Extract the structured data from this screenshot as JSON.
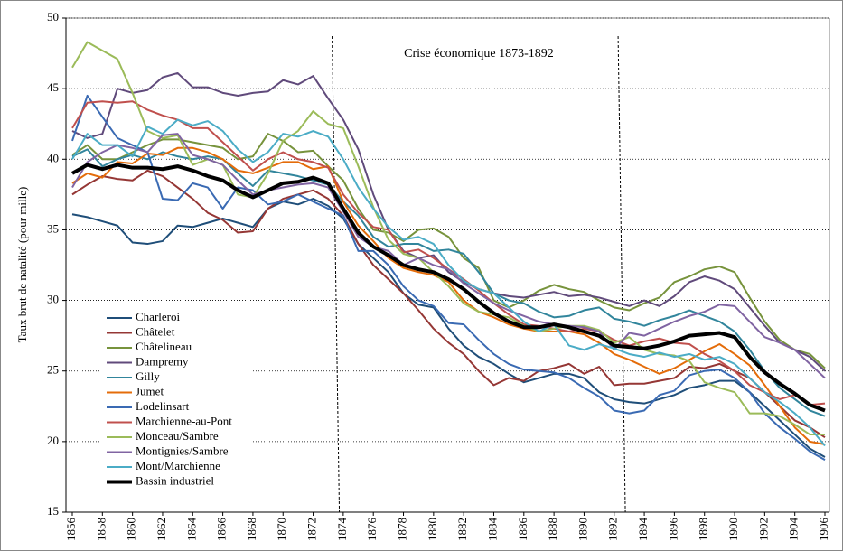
{
  "chart_data": {
    "type": "line",
    "y_label": "Taux brut de natalité (pour mille)",
    "annotation": "Crise économique 1873-1892",
    "vlines": [
      1873.5,
      1892.5
    ],
    "x": [
      1856,
      1857,
      1858,
      1859,
      1860,
      1861,
      1862,
      1863,
      1864,
      1865,
      1866,
      1867,
      1868,
      1869,
      1870,
      1871,
      1872,
      1873,
      1874,
      1875,
      1876,
      1877,
      1878,
      1879,
      1880,
      1881,
      1882,
      1883,
      1884,
      1885,
      1886,
      1887,
      1888,
      1889,
      1890,
      1891,
      1892,
      1893,
      1894,
      1895,
      1896,
      1897,
      1898,
      1899,
      1900,
      1901,
      1902,
      1903,
      1904,
      1905,
      1906
    ],
    "xlim": [
      1856,
      1906
    ],
    "xticks": [
      1856,
      1858,
      1860,
      1862,
      1864,
      1866,
      1868,
      1870,
      1872,
      1874,
      1876,
      1878,
      1880,
      1882,
      1884,
      1886,
      1888,
      1890,
      1892,
      1894,
      1896,
      1898,
      1900,
      1902,
      1904,
      1906
    ],
    "ylim": [
      15,
      50
    ],
    "yticks": [
      15,
      20,
      25,
      30,
      35,
      40,
      45,
      50
    ],
    "grid": true,
    "legend": "lower-left",
    "series": [
      {
        "name": "Charleroi",
        "color": "#1f4e79",
        "width": 2,
        "values": [
          36.1,
          35.9,
          35.6,
          35.3,
          34.1,
          34.0,
          34.2,
          35.3,
          35.2,
          35.5,
          35.8,
          35.5,
          35.2,
          36.5,
          37.0,
          36.8,
          37.2,
          36.7,
          35.8,
          34.0,
          33.0,
          32.0,
          30.5,
          29.7,
          29.5,
          28.0,
          26.8,
          26.0,
          25.5,
          24.8,
          24.2,
          24.5,
          24.8,
          24.8,
          24.5,
          23.5,
          23.0,
          22.8,
          22.7,
          23.0,
          23.3,
          23.8,
          24.0,
          24.3,
          24.3,
          23.5,
          22.5,
          21.5,
          20.5,
          19.5,
          18.9
        ]
      },
      {
        "name": "Châtelet",
        "color": "#953735",
        "width": 2,
        "values": [
          37.5,
          38.2,
          38.8,
          38.6,
          38.5,
          39.2,
          38.8,
          38.0,
          37.2,
          36.2,
          35.7,
          34.8,
          34.9,
          36.5,
          37.2,
          37.5,
          37.8,
          37.2,
          36.0,
          34.0,
          32.5,
          31.5,
          30.5,
          29.3,
          28.0,
          27.0,
          26.2,
          25.0,
          24.0,
          24.5,
          24.3,
          25.0,
          25.2,
          25.5,
          24.8,
          25.3,
          24.0,
          24.1,
          24.1,
          24.3,
          24.5,
          25.3,
          25.2,
          25.5,
          25.0,
          24.5,
          23.5,
          22.5,
          21.5,
          21.0,
          20.3
        ]
      },
      {
        "name": "Châtelineau",
        "color": "#77933c",
        "width": 2,
        "values": [
          40.3,
          41.0,
          40.0,
          40.0,
          40.5,
          41.0,
          41.4,
          41.4,
          41.2,
          41.0,
          40.8,
          40.0,
          40.2,
          41.8,
          41.3,
          40.5,
          40.6,
          39.5,
          38.5,
          36.5,
          35.0,
          34.8,
          34.2,
          35.0,
          35.1,
          34.5,
          33.0,
          32.3,
          30.0,
          29.5,
          30.0,
          30.7,
          31.1,
          30.8,
          30.6,
          30.0,
          29.5,
          29.3,
          29.8,
          30.2,
          31.3,
          31.7,
          32.2,
          32.4,
          32.0,
          30.2,
          28.5,
          27.2,
          26.5,
          26.2,
          25.2
        ]
      },
      {
        "name": "Dampremy",
        "color": "#604a7b",
        "width": 2,
        "values": [
          42.0,
          41.5,
          41.8,
          45.0,
          44.7,
          44.9,
          45.8,
          46.1,
          45.1,
          45.1,
          44.7,
          44.5,
          44.7,
          44.8,
          45.6,
          45.3,
          45.9,
          44.3,
          42.8,
          40.7,
          37.5,
          35.0,
          33.5,
          33.0,
          33.2,
          32.0,
          31.3,
          30.8,
          30.5,
          30.3,
          30.2,
          30.4,
          30.6,
          30.3,
          30.4,
          30.2,
          29.9,
          29.6,
          30.0,
          29.6,
          30.3,
          31.3,
          31.7,
          31.4,
          30.8,
          29.5,
          28.2,
          27.0,
          26.5,
          26.0,
          25.0
        ]
      },
      {
        "name": "Gilly",
        "color": "#31859c",
        "width": 2,
        "values": [
          40.2,
          40.7,
          39.5,
          40.0,
          40.3,
          40.0,
          40.5,
          40.2,
          40.0,
          40.2,
          40.0,
          39.0,
          38.1,
          39.2,
          39.0,
          38.8,
          38.5,
          38.2,
          37.0,
          36.0,
          34.5,
          33.8,
          34.0,
          34.0,
          33.5,
          33.6,
          33.3,
          32.0,
          30.5,
          30.0,
          29.8,
          29.2,
          28.8,
          28.9,
          29.3,
          29.5,
          28.7,
          28.5,
          28.2,
          28.6,
          28.9,
          29.3,
          28.9,
          28.5,
          27.8,
          26.5,
          25.0,
          23.8,
          23.0,
          22.2,
          21.8
        ]
      },
      {
        "name": "Jumet",
        "color": "#e46c0a",
        "width": 2,
        "values": [
          38.3,
          39.0,
          38.7,
          39.8,
          39.7,
          40.4,
          40.3,
          40.8,
          40.8,
          40.5,
          40.0,
          39.2,
          39.0,
          39.4,
          39.8,
          39.8,
          39.3,
          39.5,
          37.0,
          35.3,
          34.2,
          33.0,
          32.3,
          32.0,
          31.8,
          31.3,
          30.0,
          29.2,
          28.8,
          28.3,
          28.0,
          27.8,
          27.8,
          27.8,
          27.6,
          27.0,
          26.2,
          25.8,
          25.3,
          24.8,
          25.2,
          25.8,
          26.4,
          26.9,
          26.2,
          25.4,
          24.0,
          22.5,
          21.0,
          20.0,
          19.8
        ]
      },
      {
        "name": "Lodelinsart",
        "color": "#3a6ab3",
        "width": 2,
        "values": [
          41.3,
          44.5,
          43.0,
          41.5,
          41.0,
          40.5,
          37.2,
          37.1,
          38.3,
          38.0,
          36.5,
          38.0,
          37.8,
          36.8,
          37.0,
          37.5,
          37.0,
          36.5,
          36.0,
          33.5,
          33.5,
          32.5,
          31.0,
          30.0,
          29.6,
          28.4,
          28.3,
          27.2,
          26.2,
          25.5,
          25.1,
          25.0,
          24.9,
          24.5,
          23.8,
          23.2,
          22.2,
          22.0,
          22.2,
          23.3,
          23.6,
          24.7,
          25.0,
          25.1,
          24.5,
          23.5,
          22.0,
          21.0,
          20.2,
          19.3,
          18.7
        ]
      },
      {
        "name": "Marchienne-au-Pont",
        "color": "#c0504d",
        "width": 2,
        "values": [
          42.2,
          44.0,
          44.1,
          44.0,
          44.1,
          43.5,
          43.1,
          42.8,
          42.2,
          42.2,
          41.2,
          40.2,
          39.2,
          40.0,
          40.5,
          40.0,
          39.8,
          39.4,
          37.5,
          36.2,
          35.2,
          35.0,
          33.4,
          33.6,
          33.0,
          32.2,
          31.5,
          30.7,
          29.8,
          29.0,
          28.3,
          28.2,
          28.0,
          27.8,
          28.0,
          27.8,
          27.2,
          26.8,
          27.1,
          27.3,
          27.0,
          26.9,
          26.2,
          25.7,
          25.0,
          24.0,
          23.5,
          23.0,
          23.3,
          22.6,
          22.7
        ]
      },
      {
        "name": "Monceau/Sambre",
        "color": "#9bbb59",
        "width": 2,
        "values": [
          46.5,
          48.3,
          47.7,
          47.1,
          44.7,
          42.0,
          41.5,
          41.7,
          39.6,
          40.0,
          39.6,
          37.5,
          37.3,
          39.0,
          41.3,
          42.0,
          43.4,
          42.5,
          42.2,
          39.5,
          36.6,
          34.3,
          33.3,
          33.0,
          32.0,
          31.0,
          29.8,
          29.2,
          29.0,
          28.8,
          28.2,
          27.8,
          28.0,
          28.2,
          28.2,
          27.9,
          27.0,
          27.4,
          26.5,
          26.2,
          26.1,
          25.7,
          24.2,
          23.8,
          23.5,
          22.0,
          22.0,
          21.8,
          21.2,
          20.5,
          20.5
        ]
      },
      {
        "name": "Montignies/Sambre",
        "color": "#8064a2",
        "width": 2,
        "values": [
          38.0,
          39.8,
          40.5,
          41.0,
          40.8,
          40.5,
          41.7,
          41.8,
          40.3,
          40.0,
          39.6,
          38.5,
          37.5,
          37.8,
          38.0,
          38.2,
          38.3,
          38.0,
          36.3,
          34.5,
          33.8,
          33.5,
          32.5,
          33.0,
          32.5,
          32.2,
          31.2,
          30.5,
          29.8,
          29.3,
          28.9,
          28.5,
          28.3,
          28.2,
          28.1,
          27.8,
          26.5,
          27.7,
          27.5,
          28.0,
          28.5,
          28.9,
          29.2,
          29.7,
          29.6,
          28.5,
          27.4,
          27.0,
          26.5,
          25.5,
          24.5
        ]
      },
      {
        "name": "Mont/Marchienne",
        "color": "#4bacc6",
        "width": 2,
        "values": [
          40.0,
          41.8,
          41.0,
          41.0,
          40.2,
          42.3,
          41.8,
          42.8,
          42.4,
          42.7,
          42.0,
          40.7,
          39.8,
          40.5,
          41.8,
          41.6,
          42.0,
          41.6,
          40.0,
          38.0,
          36.5,
          35.2,
          34.3,
          34.5,
          34.0,
          32.5,
          31.4,
          30.8,
          30.5,
          29.5,
          28.5,
          27.8,
          28.3,
          26.8,
          26.5,
          26.9,
          26.6,
          26.2,
          26.0,
          26.3,
          26.0,
          26.2,
          25.8,
          26.0,
          25.5,
          24.5,
          23.5,
          22.8,
          22.0,
          21.0,
          19.7
        ]
      },
      {
        "name": "Bassin industriel",
        "color": "#000000",
        "width": 4,
        "values": [
          39.0,
          39.6,
          39.3,
          39.6,
          39.4,
          39.4,
          39.3,
          39.5,
          39.2,
          38.8,
          38.5,
          37.8,
          37.3,
          37.8,
          38.3,
          38.4,
          38.7,
          38.3,
          36.5,
          34.8,
          33.8,
          33.2,
          32.5,
          32.2,
          32.0,
          31.5,
          30.8,
          29.9,
          29.1,
          28.5,
          28.1,
          28.1,
          28.3,
          28.1,
          27.8,
          27.5,
          26.8,
          26.7,
          26.6,
          26.8,
          27.1,
          27.5,
          27.6,
          27.7,
          27.4,
          26.0,
          24.9,
          24.1,
          23.4,
          22.6,
          22.2
        ]
      }
    ]
  }
}
